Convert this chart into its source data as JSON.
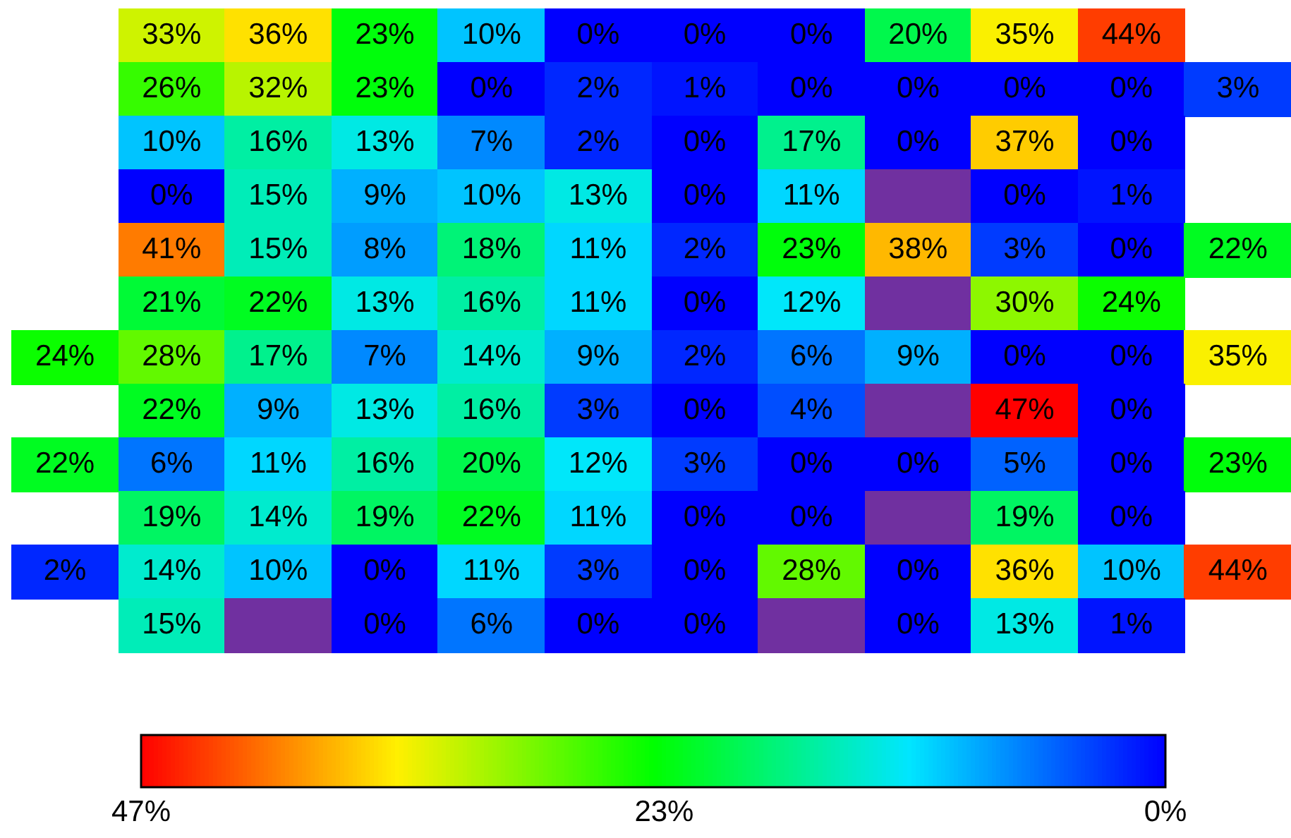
{
  "chart_data": {
    "type": "heatmap",
    "categories": [
      null,
      null,
      null,
      null,
      null,
      null,
      null,
      null,
      null,
      null,
      null,
      null
    ],
    "y_categories": [
      null,
      null,
      null,
      null,
      null,
      null,
      null,
      null,
      null,
      null,
      null,
      null
    ],
    "cells": [
      [
        null,
        33,
        36,
        23,
        10,
        0,
        0,
        0,
        20,
        35,
        44,
        null
      ],
      [
        null,
        26,
        32,
        23,
        0,
        2,
        1,
        0,
        0,
        0,
        0,
        3
      ],
      [
        null,
        10,
        16,
        13,
        7,
        2,
        0,
        17,
        0,
        37,
        0,
        null
      ],
      [
        null,
        0,
        15,
        9,
        10,
        13,
        0,
        11,
        null,
        0,
        1,
        null
      ],
      [
        null,
        41,
        15,
        8,
        18,
        11,
        2,
        23,
        38,
        3,
        0,
        22
      ],
      [
        null,
        21,
        22,
        13,
        16,
        11,
        0,
        12,
        null,
        30,
        24,
        null
      ],
      [
        24,
        28,
        17,
        7,
        14,
        9,
        2,
        6,
        9,
        0,
        0,
        35
      ],
      [
        null,
        22,
        9,
        13,
        16,
        3,
        0,
        4,
        null,
        47,
        0,
        null
      ],
      [
        22,
        6,
        11,
        16,
        20,
        12,
        3,
        0,
        0,
        5,
        0,
        23
      ],
      [
        null,
        19,
        14,
        19,
        22,
        11,
        0,
        0,
        null,
        19,
        0,
        null
      ],
      [
        2,
        14,
        10,
        0,
        11,
        3,
        0,
        28,
        0,
        36,
        10,
        44
      ],
      [
        null,
        15,
        null,
        0,
        6,
        0,
        0,
        null,
        0,
        13,
        1,
        null
      ]
    ],
    "cell_labels": [
      [
        null,
        "33%",
        "36%",
        "23%",
        "10%",
        "0%",
        "0%",
        "0%",
        "20%",
        "35%",
        "44%",
        null
      ],
      [
        null,
        "26%",
        "32%",
        "23%",
        "0%",
        "2%",
        "1%",
        "0%",
        "0%",
        "0%",
        "0%",
        "3%"
      ],
      [
        null,
        "10%",
        "16%",
        "13%",
        "7%",
        "2%",
        "0%",
        "17%",
        "0%",
        "37%",
        "0%",
        null
      ],
      [
        null,
        "0%",
        "15%",
        "9%",
        "10%",
        "13%",
        "0%",
        "11%",
        null,
        "0%",
        "1%",
        null
      ],
      [
        null,
        "41%",
        "15%",
        "8%",
        "18%",
        "11%",
        "2%",
        "23%",
        "38%",
        "3%",
        "0%",
        "22%"
      ],
      [
        null,
        "21%",
        "22%",
        "13%",
        "16%",
        "11%",
        "0%",
        "12%",
        null,
        "30%",
        "24%",
        null
      ],
      [
        "24%",
        "28%",
        "17%",
        "7%",
        "14%",
        "9%",
        "2%",
        "6%",
        "9%",
        "0%",
        "0%",
        "35%"
      ],
      [
        null,
        "22%",
        "9%",
        "13%",
        "16%",
        "3%",
        "0%",
        "4%",
        null,
        "47%",
        "0%",
        null
      ],
      [
        "22%",
        "6%",
        "11%",
        "16%",
        "20%",
        "12%",
        "3%",
        "0%",
        "0%",
        "5%",
        "0%",
        "23%"
      ],
      [
        null,
        "19%",
        "14%",
        "19%",
        "22%",
        "11%",
        "0%",
        "0%",
        null,
        "19%",
        "0%",
        null
      ],
      [
        "2%",
        "14%",
        "10%",
        "0%",
        "11%",
        "3%",
        "0%",
        "28%",
        "0%",
        "36%",
        "10%",
        "44%"
      ],
      [
        null,
        "15%",
        null,
        "0%",
        "6%",
        "0%",
        "0%",
        null,
        "0%",
        "13%",
        "1%",
        null
      ]
    ],
    "clim": [
      47,
      0
    ],
    "cticks": [
      {
        "value": 47,
        "label": "47%"
      },
      {
        "value": 23,
        "label": "23%"
      },
      {
        "value": 0,
        "label": "0%"
      }
    ]
  }
}
